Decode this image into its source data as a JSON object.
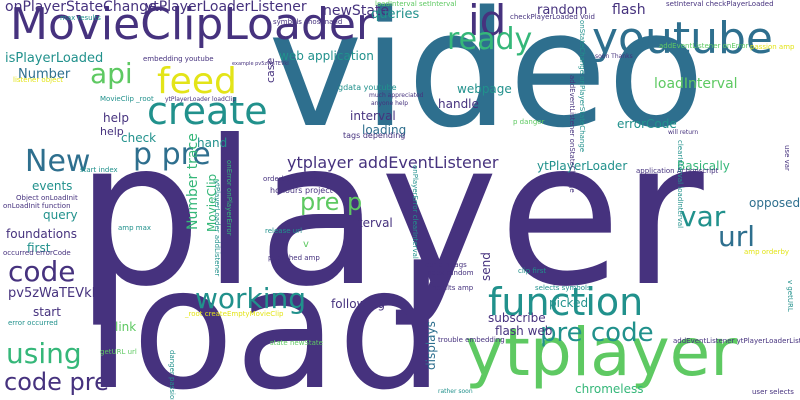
{
  "word_cloud": {
    "palette": {
      "dark_purple": "#46327e",
      "teal": "#2e6f8e",
      "green": "#5ec962",
      "mid_green": "#35b779",
      "sea_green": "#21918c",
      "yellow": "#e3e418",
      "cyan": "#29af7f",
      "indigo": "#3b528b",
      "navy": "#404688",
      "deep": "#440154"
    },
    "words": [
      {
        "text": "player",
        "color": "dark_purple"
      },
      {
        "text": "video",
        "color": "teal"
      },
      {
        "text": "load",
        "color": "dark_purple"
      },
      {
        "text": "p",
        "color": "yellow"
      },
      {
        "text": "MovieClipLoader",
        "color": "dark_purple"
      },
      {
        "text": "ytplayer",
        "color": "green"
      },
      {
        "text": "youtube",
        "color": "teal"
      },
      {
        "text": "create",
        "color": "sea_green"
      },
      {
        "text": "feed",
        "color": "yellow"
      },
      {
        "text": "function",
        "color": "sea_green"
      },
      {
        "text": "id",
        "color": "dark_purple"
      },
      {
        "text": "ready",
        "color": "mid_green"
      },
      {
        "text": "p pre",
        "color": "teal"
      },
      {
        "text": "New",
        "color": "teal"
      },
      {
        "text": "api",
        "color": "green"
      },
      {
        "text": "code",
        "color": "dark_purple"
      },
      {
        "text": "using",
        "color": "mid_green"
      },
      {
        "text": "working",
        "color": "sea_green"
      },
      {
        "text": "var",
        "color": "sea_green"
      },
      {
        "text": "url",
        "color": "teal"
      },
      {
        "text": "pre code",
        "color": "sea_green"
      },
      {
        "text": "code pre",
        "color": "dark_purple"
      },
      {
        "text": "pre p",
        "color": "green"
      },
      {
        "text": "ytplayer addEventListener",
        "color": "dark_purple"
      },
      {
        "text": "onPlayerStateChange",
        "color": "dark_purple"
      },
      {
        "text": "ytPlayerLoaderListener",
        "color": "dark_purple"
      },
      {
        "text": "newState",
        "color": "dark_purple"
      },
      {
        "text": "flash",
        "color": "dark_purple"
      },
      {
        "text": "random",
        "color": "dark_purple"
      },
      {
        "text": "queries",
        "color": "sea_green"
      },
      {
        "text": "isPlayerLoaded",
        "color": "sea_green"
      },
      {
        "text": "Number",
        "color": "teal"
      },
      {
        "text": "webpage",
        "color": "sea_green"
      },
      {
        "text": "handle",
        "color": "dark_purple"
      },
      {
        "text": "loadInterval",
        "color": "green"
      },
      {
        "text": "web application",
        "color": "sea_green"
      },
      {
        "text": "gdata youtube",
        "color": "sea_green"
      },
      {
        "text": "help",
        "color": "dark_purple"
      },
      {
        "text": "check",
        "color": "sea_green"
      },
      {
        "text": "hand",
        "color": "sea_green"
      },
      {
        "text": "interval",
        "color": "dark_purple"
      },
      {
        "text": "loading",
        "color": "teal"
      },
      {
        "text": "errorCode",
        "color": "sea_green"
      },
      {
        "text": "Basically",
        "color": "mid_green"
      },
      {
        "text": "ytPlayerLoader",
        "color": "sea_green"
      },
      {
        "text": "Number trace",
        "color": "mid_green"
      },
      {
        "text": "MovieClip",
        "color": "mid_green"
      },
      {
        "text": "events",
        "color": "sea_green"
      },
      {
        "text": "query",
        "color": "sea_green"
      },
      {
        "text": "foundations",
        "color": "dark_purple"
      },
      {
        "text": "first",
        "color": "sea_green"
      },
      {
        "text": "pv5zWaTEVkI",
        "color": "dark_purple"
      },
      {
        "text": "start",
        "color": "dark_purple"
      },
      {
        "text": "link",
        "color": "green"
      },
      {
        "text": "following",
        "color": "dark_purple"
      },
      {
        "text": "subscribe",
        "color": "dark_purple"
      },
      {
        "text": "flash web",
        "color": "dark_purple"
      },
      {
        "text": "picked",
        "color": "sea_green"
      },
      {
        "text": "chromeless",
        "color": "mid_green"
      },
      {
        "text": "opposed",
        "color": "teal"
      },
      {
        "text": "displays",
        "color": "teal"
      },
      {
        "text": "send",
        "color": "dark_purple"
      },
      {
        "text": "case",
        "color": "dark_purple"
      },
      {
        "text": "interval",
        "color": "dark_purple"
      },
      {
        "text": "help",
        "color": "dark_purple"
      },
      {
        "text": "tags depending",
        "color": "dark_purple"
      },
      {
        "text": "honours project",
        "color": "dark_purple"
      },
      {
        "text": "published amp",
        "color": "dark_purple"
      },
      {
        "text": "release url",
        "color": "sea_green"
      },
      {
        "text": "orderby published",
        "color": "dark_purple"
      },
      {
        "text": "certain tags",
        "color": "dark_purple"
      },
      {
        "text": "index random",
        "color": "dark_purple"
      },
      {
        "text": "results amp",
        "color": "dark_purple"
      },
      {
        "text": "selects symbols",
        "color": "sea_green"
      },
      {
        "text": "clip first",
        "color": "sea_green"
      },
      {
        "text": "trouble embedding",
        "color": "dark_purple"
      },
      {
        "text": "state newState",
        "color": "green"
      },
      {
        "text": "rather soon",
        "color": "sea_green"
      },
      {
        "text": "user selects",
        "color": "dark_purple"
      },
      {
        "text": "use var",
        "color": "dark_purple"
      },
      {
        "text": "max results",
        "color": "sea_green"
      },
      {
        "text": "embedding youtube",
        "color": "dark_purple"
      },
      {
        "text": "symbols chosenand",
        "color": "dark_purple"
      },
      {
        "text": "loadInterval setInterval",
        "color": "green"
      },
      {
        "text": "setInterval checkPlayerLoaded",
        "color": "dark_purple"
      },
      {
        "text": "checkPlayerLoaded Void",
        "color": "dark_purple"
      },
      {
        "text": "addEventListener onError",
        "color": "green"
      },
      {
        "text": "passion amp",
        "color": "yellow"
      },
      {
        "text": "listener object",
        "color": "yellow"
      },
      {
        "text": "MovieClip _root",
        "color": "sea_green"
      },
      {
        "text": "Object onLoadInit",
        "color": "dark_purple"
      },
      {
        "text": "onLoadInit function",
        "color": "dark_purple"
      },
      {
        "text": "occurred errorCode",
        "color": "dark_purple"
      },
      {
        "text": "error occurred",
        "color": "sea_green"
      },
      {
        "text": "start index",
        "color": "sea_green"
      },
      {
        "text": "amp max",
        "color": "sea_green"
      },
      {
        "text": "application Actionscript",
        "color": "dark_purple"
      },
      {
        "text": "will return",
        "color": "dark_purple"
      },
      {
        "text": "anyone help",
        "color": "dark_purple"
      },
      {
        "text": "much appreciated",
        "color": "dark_purple"
      },
      {
        "text": "p danger",
        "color": "green"
      },
      {
        "text": "getURL url",
        "color": "green"
      },
      {
        "text": "danger passion",
        "color": "sea_green"
      },
      {
        "text": "_root createEmptyMovieClip",
        "color": "yellow"
      },
      {
        "text": "addEventListener ytPlayerLoaderListener",
        "color": "dark_purple"
      },
      {
        "text": "amp orderby",
        "color": "yellow"
      },
      {
        "text": "v getURL",
        "color": "sea_green"
      },
      {
        "text": "soon Thanks",
        "color": "dark_purple"
      },
      {
        "text": "v",
        "color": "green"
      },
      {
        "text": "onError onPlayerError",
        "color": "mid_green"
      },
      {
        "text": "onPlayerError clearInterval",
        "color": "sea_green"
      },
      {
        "text": "clearInterval loadInterval",
        "color": "sea_green"
      },
      {
        "text": "onStateChange onPlayerStateChange",
        "color": "sea_green"
      },
      {
        "text": "addEventListener onStateChange",
        "color": "dark_purple"
      },
      {
        "text": "ytPlayerLoader addListener",
        "color": "sea_green"
      },
      {
        "text": "ytPlayerLoader loadClip",
        "color": "dark_purple"
      },
      {
        "text": "example pv5zWaTEVkI",
        "color": "dark_purple"
      }
    ]
  }
}
